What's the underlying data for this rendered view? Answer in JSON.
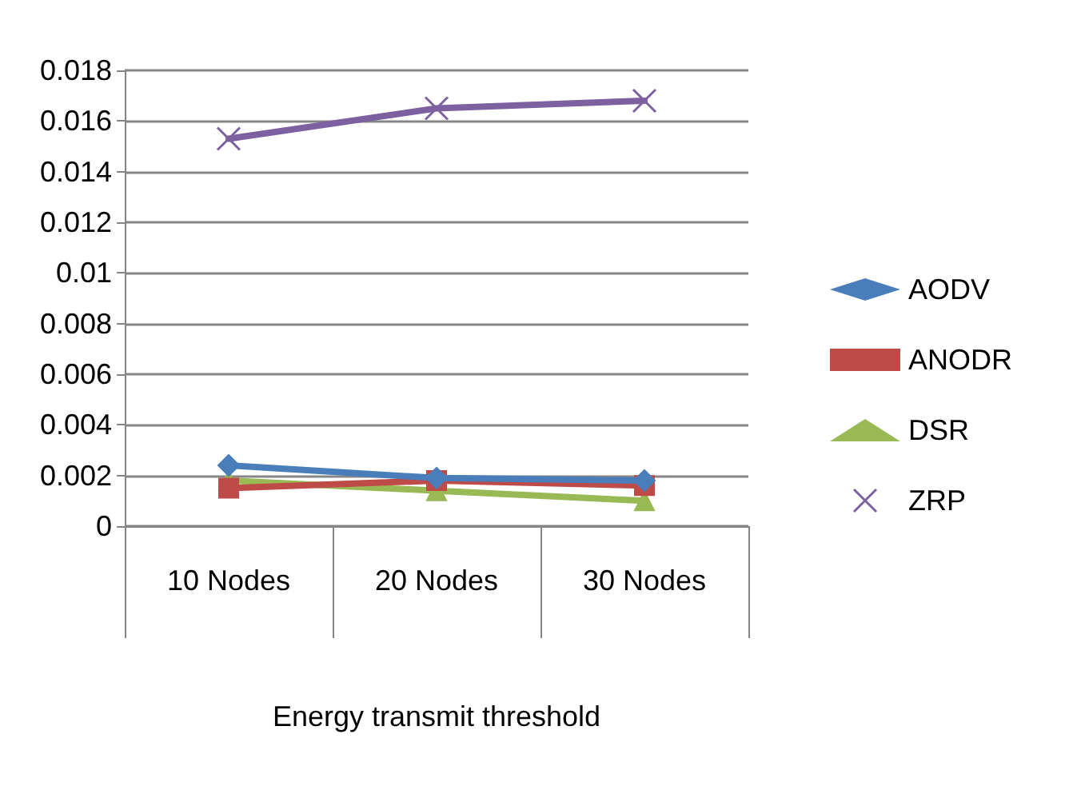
{
  "chart_data": {
    "type": "line",
    "xlabel": "Energy transmit threshold",
    "categories": [
      "10 Nodes",
      "20 Nodes",
      "30 Nodes"
    ],
    "series": [
      {
        "name": "AODV",
        "color": "#4a7ebb",
        "marker": "diamond",
        "values": [
          0.0024,
          0.0019,
          0.0018
        ]
      },
      {
        "name": "ANODR",
        "color": "#be4b48",
        "marker": "square",
        "values": [
          0.0015,
          0.0018,
          0.0016
        ]
      },
      {
        "name": "DSR",
        "color": "#98b954",
        "marker": "triangle",
        "values": [
          0.0018,
          0.0014,
          0.001
        ]
      },
      {
        "name": "ZRP",
        "color": "#7d60a0",
        "marker": "cross",
        "values": [
          0.0153,
          0.0165,
          0.0168
        ]
      }
    ],
    "ylim": [
      0,
      0.018
    ],
    "yticks": [
      0,
      0.002,
      0.004,
      0.006,
      0.008,
      0.01,
      0.012,
      0.014,
      0.016,
      0.018
    ],
    "grid": "y",
    "legend": "right",
    "line_style": "solid"
  }
}
